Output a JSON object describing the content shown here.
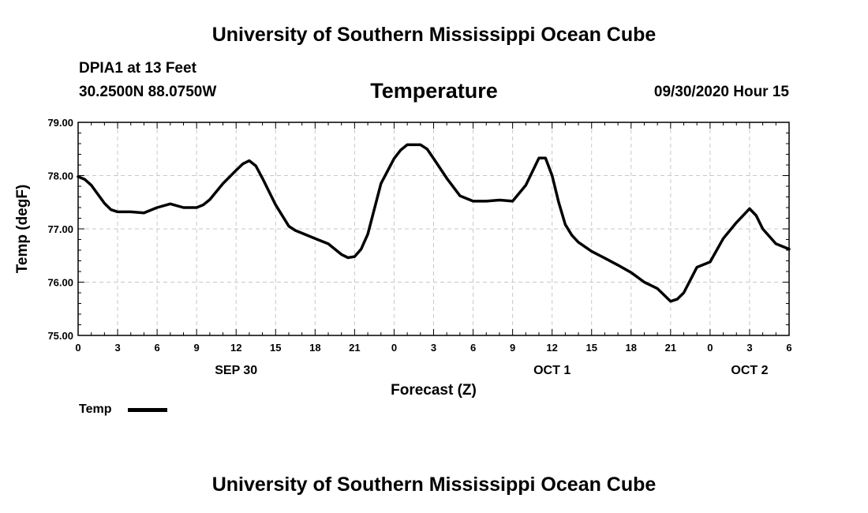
{
  "header": {
    "title_top": "University of Southern Mississippi Ocean Cube",
    "station": "DPIA1 at 13 Feet",
    "coords": "30.2500N 88.0750W",
    "variable": "Temperature",
    "datetime": "09/30/2020 Hour 15"
  },
  "footer": {
    "title_bottom": "University of Southern Mississippi Ocean Cube"
  },
  "legend": {
    "label": "Temp",
    "color": "#000000"
  },
  "chart_data": {
    "type": "line",
    "title": "Temperature",
    "xlabel": "Forecast (Z)",
    "ylabel": "Temp (degF)",
    "xlim": [
      0,
      54
    ],
    "ylim": [
      75,
      79
    ],
    "yticks": [
      "75.00",
      "76.00",
      "77.00",
      "78.00",
      "79.00"
    ],
    "ytick_values": [
      75,
      76,
      77,
      78,
      79
    ],
    "xtick_hours": [
      0,
      3,
      6,
      9,
      12,
      15,
      18,
      21,
      24,
      27,
      30,
      33,
      36,
      39,
      42,
      45,
      48,
      51,
      54
    ],
    "xtick_labels": [
      "0",
      "3",
      "6",
      "9",
      "12",
      "15",
      "18",
      "21",
      "0",
      "3",
      "6",
      "9",
      "12",
      "15",
      "18",
      "21",
      "0",
      "3",
      "6"
    ],
    "day_labels": [
      {
        "hour": 12,
        "label": "SEP 30"
      },
      {
        "hour": 36,
        "label": "OCT 1"
      },
      {
        "hour": 51,
        "label": "OCT 2"
      }
    ],
    "grid": true,
    "series": [
      {
        "name": "Temp",
        "x": [
          0,
          0.5,
          1,
          1.5,
          2,
          2.5,
          3,
          4,
          5,
          6,
          7,
          8,
          9,
          9.5,
          10,
          11,
          12,
          12.5,
          13,
          13.5,
          14,
          15,
          16,
          16.5,
          17,
          18,
          19,
          20,
          20.5,
          21,
          21.5,
          22,
          23,
          24,
          24.5,
          25,
          26,
          26.5,
          27,
          28,
          29,
          30,
          31,
          32,
          33,
          34,
          35,
          35.5,
          36,
          36.5,
          37,
          37.5,
          38,
          39,
          40,
          41,
          42,
          43,
          44,
          45,
          45.5,
          46,
          47,
          48,
          49,
          50,
          51,
          51.5,
          52,
          53,
          54
        ],
        "values": [
          77.98,
          77.93,
          77.82,
          77.65,
          77.48,
          77.36,
          77.32,
          77.32,
          77.3,
          77.4,
          77.47,
          77.4,
          77.4,
          77.45,
          77.55,
          77.85,
          78.1,
          78.22,
          78.28,
          78.18,
          77.95,
          77.45,
          77.05,
          76.97,
          76.92,
          76.82,
          76.72,
          76.52,
          76.46,
          76.48,
          76.62,
          76.9,
          77.85,
          78.32,
          78.48,
          78.58,
          78.58,
          78.5,
          78.32,
          77.95,
          77.62,
          77.52,
          77.52,
          77.54,
          77.52,
          77.82,
          78.33,
          78.33,
          78.0,
          77.5,
          77.08,
          76.88,
          76.75,
          76.58,
          76.45,
          76.32,
          76.18,
          76.0,
          75.88,
          75.64,
          75.68,
          75.8,
          76.28,
          76.38,
          76.82,
          77.12,
          77.38,
          77.25,
          77.0,
          76.72,
          76.62
        ]
      }
    ]
  }
}
